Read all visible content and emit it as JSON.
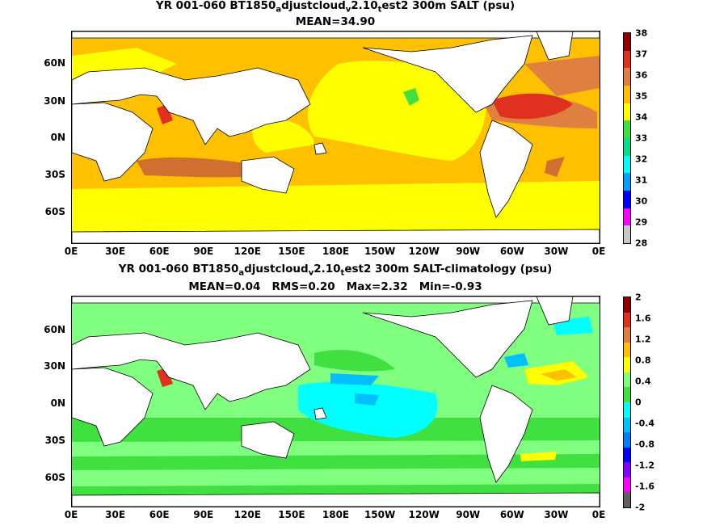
{
  "top": {
    "title_a": "YR 001-060 BT1850",
    "title_s1": "a",
    "title_b": "djustcloud",
    "title_s2": "v",
    "title_c": "2.10",
    "title_s3": "t",
    "title_d": "est2 300m SALT (psu)",
    "subtitle": "MEAN=34.90",
    "colorbar": {
      "labels": [
        "38",
        "37",
        "36",
        "35",
        "34",
        "33",
        "32",
        "31",
        "30",
        "29",
        "28"
      ],
      "colors": [
        "#c8c8c8",
        "#ff00ff",
        "#0000ff",
        "#00a0ff",
        "#00ffff",
        "#00e090",
        "#40e040",
        "#ffff00",
        "#ffc000",
        "#e08040",
        "#e03020",
        "#900000"
      ]
    }
  },
  "bottom": {
    "title_a": "YR 001-060 BT1850",
    "title_s1": "a",
    "title_b": "djustcloud",
    "title_s2": "v",
    "title_c": "2.10",
    "title_s3": "t",
    "title_d": "est2 300m SALT-climatology (psu)",
    "subtitle": "MEAN=0.04   RMS=0.20   Max=2.32   Min=-0.93",
    "colorbar": {
      "labels": [
        "2",
        "1.6",
        "1.2",
        "0.8",
        "0.4",
        "0",
        "-0.4",
        "-0.8",
        "-1.2",
        "-1.6",
        "-2"
      ],
      "colors": [
        "#606060",
        "#ff00ff",
        "#8000ff",
        "#0000ff",
        "#0080ff",
        "#00c0ff",
        "#00ffff",
        "#40e040",
        "#80ff80",
        "#ffff00",
        "#ffc000",
        "#e08040",
        "#e03020",
        "#900000"
      ]
    }
  },
  "x_ticks": [
    "0E",
    "30E",
    "60E",
    "90E",
    "120E",
    "150E",
    "180E",
    "150W",
    "120W",
    "90W",
    "60W",
    "30W",
    "0E"
  ],
  "y_ticks": [
    "60N",
    "30N",
    "0N",
    "30S",
    "60S"
  ]
}
